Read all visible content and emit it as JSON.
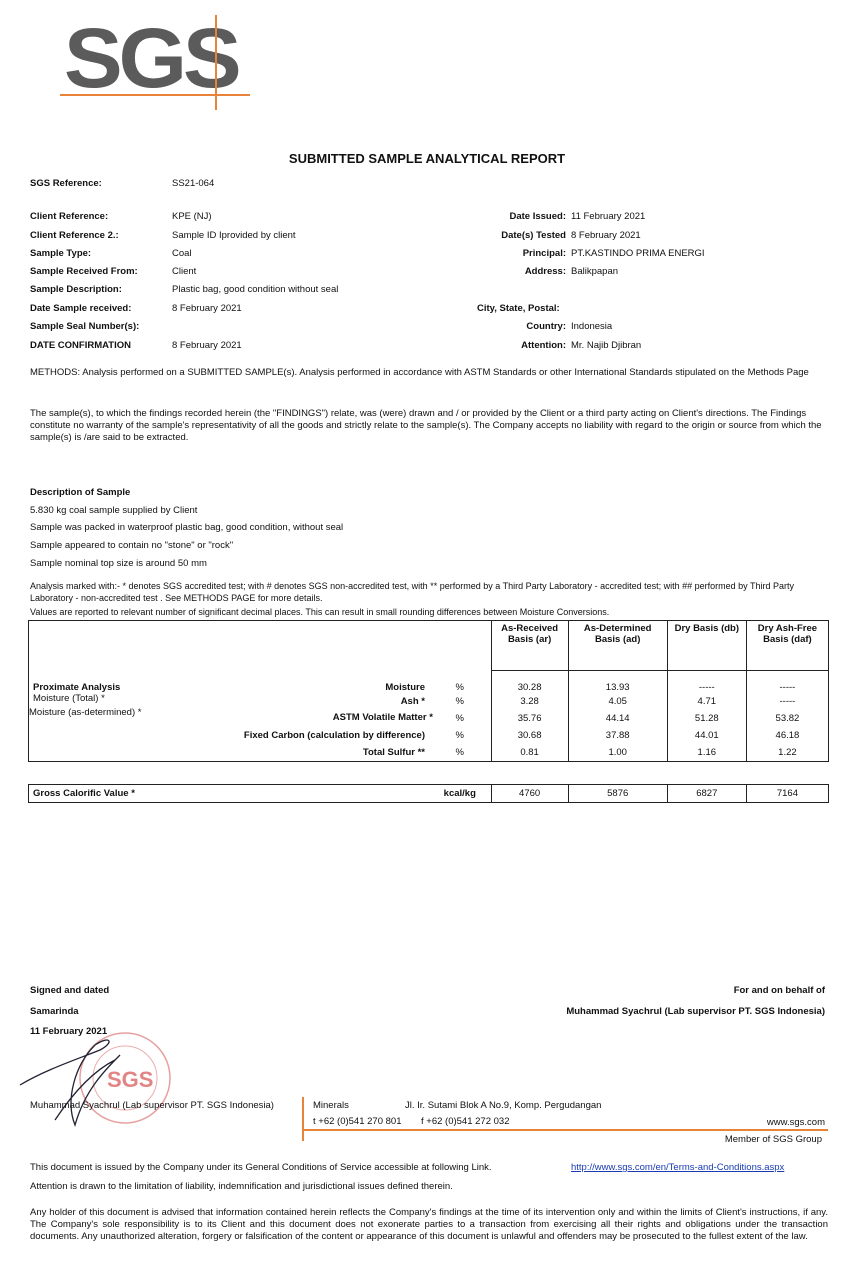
{
  "logo": {
    "text": "SGS",
    "accent": "#e8833a"
  },
  "title": "SUBMITTED SAMPLE ANALYTICAL REPORT",
  "sgs_reference": {
    "label": "SGS Reference:",
    "value": "SS21-064"
  },
  "left_fields": [
    {
      "label": "Client Reference:",
      "value": "KPE (NJ)"
    },
    {
      "label": "Client Reference 2.:",
      "value": "Sample ID Iprovided by client"
    },
    {
      "label": "Sample Type:",
      "value": "Coal"
    },
    {
      "label": "Sample Received From:",
      "value": "Client"
    },
    {
      "label": "Sample Description:",
      "value": "Plastic bag, good condition without seal"
    },
    {
      "label": "Date Sample received:",
      "value": "8 February 2021"
    },
    {
      "label": "Sample Seal Number(s):",
      "value": ""
    },
    {
      "label": "DATE CONFIRMATION",
      "value": "8 February 2021"
    }
  ],
  "right_fields": [
    {
      "label": "Date Issued:",
      "value": "11 February 2021"
    },
    {
      "label": "Date(s) Tested",
      "value": "8 February 2021"
    },
    {
      "label": "Principal:",
      "value": "PT.KASTINDO PRIMA ENERGI"
    },
    {
      "label": "Address:",
      "value": "Balikpapan"
    },
    {
      "label": "City, State, Postal:",
      "value": ""
    },
    {
      "label": "Country:",
      "value": "Indonesia"
    },
    {
      "label": "Attention:",
      "value": "Mr. Najib Djibran"
    }
  ],
  "methods": "METHODS: Analysis performed on a SUBMITTED SAMPLE(s). Analysis performed in accordance with ASTM Standards or other International Standards stipulated on the Methods Page",
  "findings": "The sample(s), to which the findings recorded herein (the \"FINDINGS\") relate, was (were) drawn and / or provided by the Client or a third party acting on Client's directions. The Findings constitute no warranty of the sample's representativity of all the goods and strictly relate to the sample(s). The Company accepts no liability with regard to the origin or source from which the sample(s) is /are said to be extracted.",
  "description": {
    "heading": "Description of Sample",
    "lines": [
      "5.830 kg  coal sample supplied by Client",
      "Sample was packed in waterproof plastic bag, good condition, without seal",
      "Sample appeared to contain no \"stone\" or \"rock\"",
      "Sample nominal top size is around 50 mm"
    ]
  },
  "analysis_note": "Analysis marked with:- * denotes SGS accredited test;  with # denotes SGS non-accredited test, with ** performed by a Third Party Laboratory - accredited test; with ## performed by Third Party Laboratory - non-accredited test . See METHODS PAGE for more details.",
  "values_note": "Values are reported to relevant number of significant decimal places. This can result in small rounding differences between Moisture Conversions.",
  "table": {
    "headers": [
      "As-Received Basis (ar)",
      "As-Determined Basis (ad)",
      "Dry Basis (db)",
      "Dry Ash-Free Basis (daf)"
    ],
    "section": "Proximate Analysis",
    "left_notes": [
      "Moisture (Total)  *",
      "Moisture (as-determined)  *"
    ],
    "rows": [
      {
        "param": "Moisture",
        "unit": "%",
        "ar": "30.28",
        "ad": "13.93",
        "db": "-----",
        "daf": "-----"
      },
      {
        "param": "Ash  *",
        "unit": "%",
        "ar": "3.28",
        "ad": "4.05",
        "db": "4.71",
        "daf": "-----"
      },
      {
        "param": "ASTM Volatile Matter  *",
        "unit": "%",
        "ar": "35.76",
        "ad": "44.14",
        "db": "51.28",
        "daf": "53.82"
      },
      {
        "param": "Fixed Carbon (calculation by difference)",
        "unit": "%",
        "ar": "30.68",
        "ad": "37.88",
        "db": "44.01",
        "daf": "46.18"
      },
      {
        "param": "Total Sulfur  **",
        "unit": "%",
        "ar": "0.81",
        "ad": "1.00",
        "db": "1.16",
        "daf": "1.22"
      }
    ],
    "gcv": {
      "param": "Gross Calorific Value  *",
      "unit": "kcal/kg",
      "ar": "4760",
      "ad": "5876",
      "db": "6827",
      "daf": "7164"
    }
  },
  "signature": {
    "signed": "Signed and dated",
    "place": "Samarinda",
    "date": "11 February 2021",
    "behalf": "For and on behalf of",
    "signer": "Muhammad Syachrul (Lab supervisor PT. SGS Indonesia)",
    "stamp_text": "SGS INDONESIA SAMARINDA"
  },
  "footer": {
    "signer": "Muhammad Syachrul (Lab supervisor PT. SGS Indonesia)",
    "division": "Minerals",
    "address": "Jl. Ir. Sutami Blok A No.9, Komp. Pergudangan",
    "phone": "t  +62 (0)541 270 801",
    "fax": "f  +62 (0)541 272 032",
    "web": "www.sgs.com",
    "member": "Member of SGS Group"
  },
  "conditions": "This document is issued by the Company under its General Conditions of Service accessible at following Link.",
  "conditions_link": "http://www.sgs.com/en/Terms-and-Conditions.aspx",
  "attention": "Attention is drawn to the limitation of liability, indemnification and jurisdictional issues defined therein.",
  "disclaimer": "Any holder of this document is advised that information contained herein reflects the Company's findings at the time of its intervention only and within the limits of Client's instructions, if any.  The Company's sole responsibility is to its Client and this document does not exonerate parties to a transaction from exercising all their rights and obligations under the transaction documents. Any unauthorized alteration, forgery or falsification of the content or appearance of this document is unlawful and offenders may be prosecuted to the fullest extent of the law."
}
